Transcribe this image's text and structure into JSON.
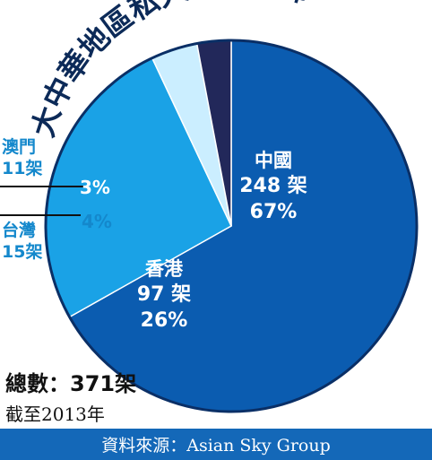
{
  "title": "大中華地區私人飛機分佈",
  "chart_data": {
    "type": "pie",
    "title": "大中華地區私人飛機分佈",
    "unit": "架",
    "total_label": "總數：371架",
    "slices": [
      {
        "name": "中國",
        "count_label": "248 架",
        "percent_label": "67%",
        "value": 248,
        "percent": 67,
        "color": "#0b5cb0"
      },
      {
        "name": "香港",
        "count_label": "97 架",
        "percent_label": "26%",
        "value": 97,
        "percent": 26,
        "color": "#1aa2e6"
      },
      {
        "name": "台灣",
        "count_label": "15架",
        "percent_label": "4%",
        "value": 15,
        "percent": 4,
        "color": "#cbeeff"
      },
      {
        "name": "澳門",
        "count_label": "11架",
        "percent_label": "3%",
        "value": 11,
        "percent": 3,
        "color": "#22285a"
      }
    ]
  },
  "footer": {
    "total": "總數：371架",
    "as_of": "截至2013年",
    "source": "資料來源：Asian Sky Group"
  }
}
